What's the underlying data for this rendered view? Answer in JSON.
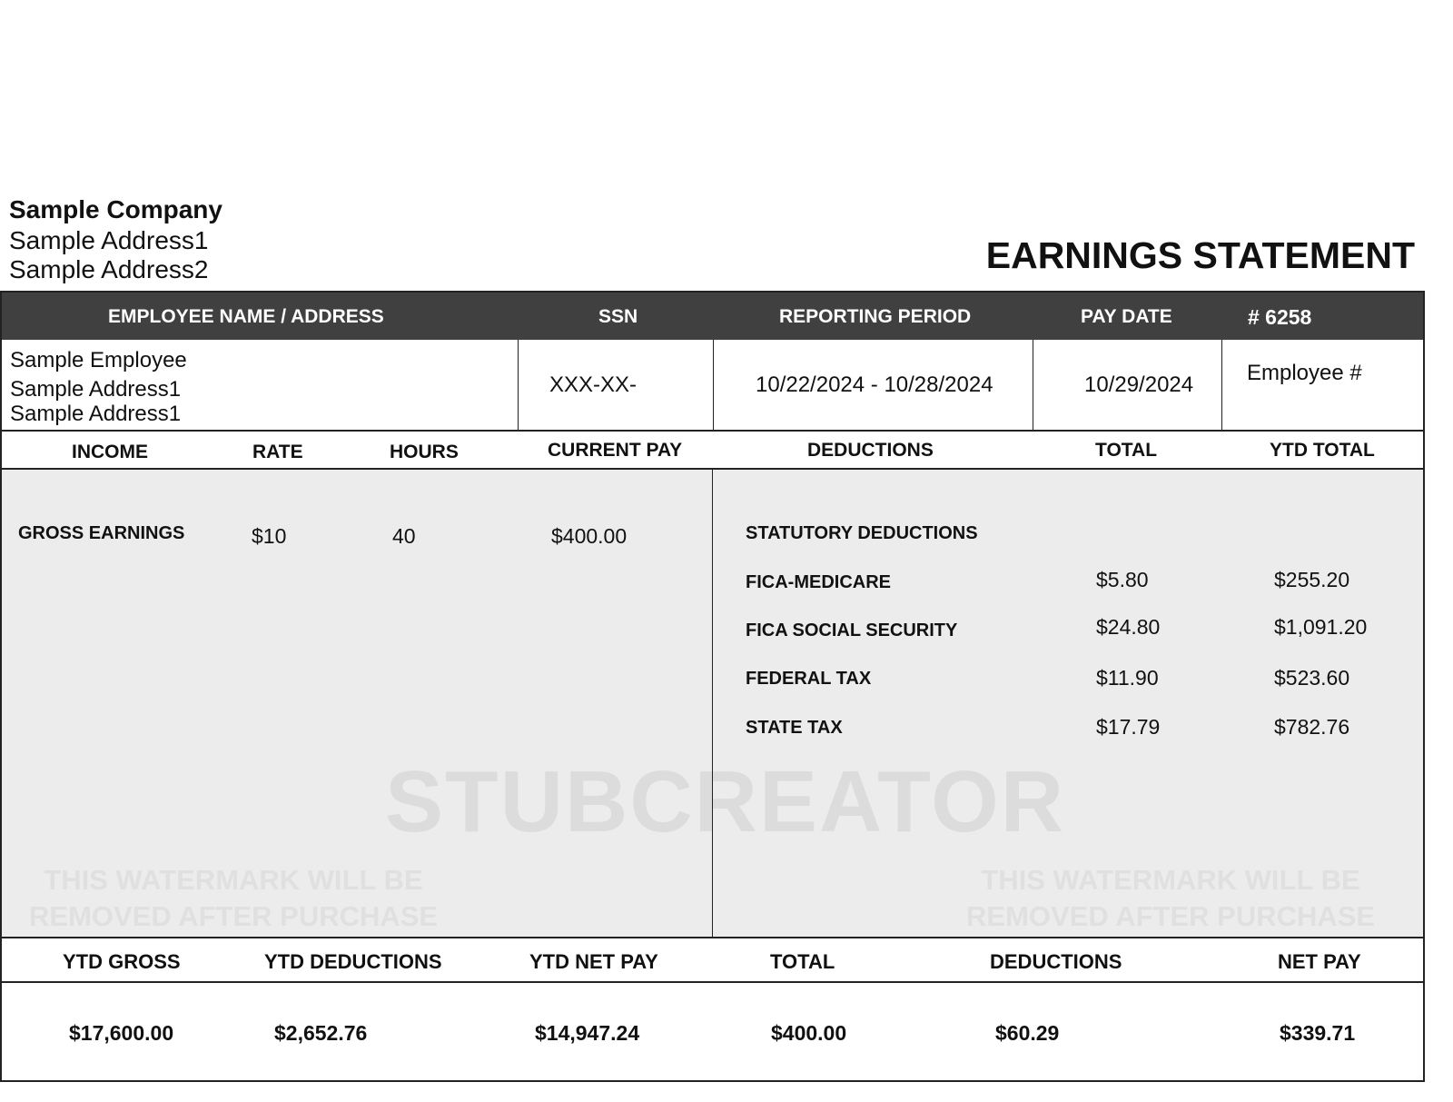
{
  "company": {
    "name": "Sample Company",
    "address1": "Sample Address1",
    "address2": "Sample Address2"
  },
  "title": "EARNINGS STATEMENT",
  "header": {
    "employee": "EMPLOYEE NAME / ADDRESS",
    "ssn": "SSN",
    "period": "REPORTING PERIOD",
    "pay_date": "PAY DATE",
    "number": "# 6258"
  },
  "info": {
    "employee_name": "Sample Employee",
    "employee_address1": "Sample Address1",
    "employee_address2": "Sample Address1",
    "ssn": "XXX-XX-",
    "period": "10/22/2024 - 10/28/2024",
    "pay_date": "10/29/2024",
    "employee_no": "Employee #"
  },
  "columns": {
    "income": "INCOME",
    "rate": "RATE",
    "hours": "HOURS",
    "current_pay": "CURRENT PAY",
    "deductions": "DEDUCTIONS",
    "total": "TOTAL",
    "ytd_total": "YTD TOTAL"
  },
  "income": {
    "label": "GROSS EARNINGS",
    "rate": "$10",
    "hours": "40",
    "current_pay": "$400.00"
  },
  "deductions": {
    "section": "STATUTORY DEDUCTIONS",
    "items": [
      {
        "label": "FICA-MEDICARE",
        "total": "$5.80",
        "ytd": "$255.20"
      },
      {
        "label": "FICA SOCIAL SECURITY",
        "total": "$24.80",
        "ytd": "$1,091.20"
      },
      {
        "label": "FEDERAL TAX",
        "total": "$11.90",
        "ytd": "$523.60"
      },
      {
        "label": "STATE TAX",
        "total": "$17.79",
        "ytd": "$782.76"
      }
    ]
  },
  "watermark": {
    "brand": "STUBCREATOR",
    "notice_line1": "THIS WATERMARK WILL BE",
    "notice_line2": "REMOVED AFTER PURCHASE"
  },
  "summary": {
    "headers": [
      "YTD GROSS",
      "YTD DEDUCTIONS",
      "YTD NET PAY",
      "TOTAL",
      "DEDUCTIONS",
      "NET PAY"
    ],
    "values": [
      "$17,600.00",
      "$2,652.76",
      "$14,947.24",
      "$400.00",
      "$60.29",
      "$339.71"
    ]
  }
}
